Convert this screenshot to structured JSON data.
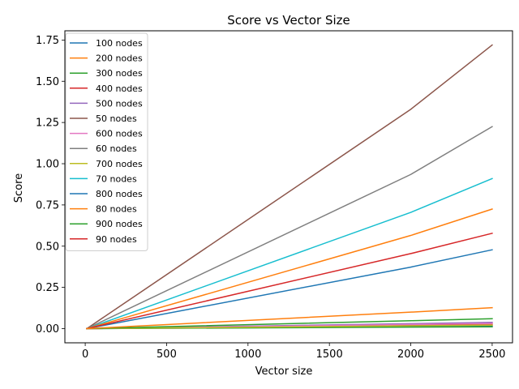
{
  "chart_data": {
    "type": "line",
    "title": "Score vs Vector Size",
    "xlabel": "Vector size",
    "ylabel": "Score",
    "xlim": [
      -125,
      2625
    ],
    "ylim": [
      -0.086,
      1.806
    ],
    "xticks": [
      0,
      500,
      1000,
      1500,
      2000,
      2500
    ],
    "xtick_labels": [
      "0",
      "500",
      "1000",
      "1500",
      "2000",
      "2500"
    ],
    "yticks": [
      0,
      0.25,
      0.5,
      0.75,
      1.0,
      1.25,
      1.5,
      1.75
    ],
    "ytick_labels": [
      "0.00",
      "0.25",
      "0.50",
      "0.75",
      "1.00",
      "1.25",
      "1.50",
      "1.75"
    ],
    "grid": false,
    "legend_position": "top-left",
    "x": [
      10,
      2000,
      2500
    ],
    "series": [
      {
        "name": "100 nodes",
        "color": "#1f77b4",
        "values": [
          0.0001,
          0.011,
          0.014
        ]
      },
      {
        "name": "200 nodes",
        "color": "#ff7f0e",
        "values": [
          0.0001,
          0.024,
          0.03
        ]
      },
      {
        "name": "300 nodes",
        "color": "#2ca02c",
        "values": [
          0.0001,
          0.009,
          0.011
        ]
      },
      {
        "name": "400 nodes",
        "color": "#d62728",
        "values": [
          0.0001,
          0.019,
          0.023
        ]
      },
      {
        "name": "500 nodes",
        "color": "#9467bd",
        "values": [
          0.0001,
          0.03,
          0.038
        ]
      },
      {
        "name": "50 nodes",
        "color": "#8c564b",
        "values": [
          0.0,
          1.33,
          1.72
        ]
      },
      {
        "name": "600 nodes",
        "color": "#e377c2",
        "values": [
          0.0001,
          0.025,
          0.031
        ]
      },
      {
        "name": "60 nodes",
        "color": "#7f7f7f",
        "values": [
          0.0,
          0.935,
          1.225
        ]
      },
      {
        "name": "700 nodes",
        "color": "#bcbd22",
        "values": [
          0.0001,
          0.017,
          0.021
        ]
      },
      {
        "name": "70 nodes",
        "color": "#17becf",
        "values": [
          0.0,
          0.705,
          0.91
        ]
      },
      {
        "name": "800 nodes",
        "color": "#1f77b4",
        "values": [
          0.0,
          0.373,
          0.478
        ]
      },
      {
        "name": "80 nodes",
        "color": "#ff7f0e",
        "values": [
          0.0,
          0.565,
          0.725
        ]
      },
      {
        "name": "900 nodes",
        "color": "#2ca02c",
        "values": [
          0.0,
          0.048,
          0.06
        ]
      },
      {
        "name": "90 nodes",
        "color": "#d62728",
        "values": [
          0.0,
          0.455,
          0.578
        ]
      },
      {
        "name": "",
        "color": "#ff7f0e",
        "values": [
          0.0,
          0.1,
          0.127
        ]
      }
    ]
  }
}
